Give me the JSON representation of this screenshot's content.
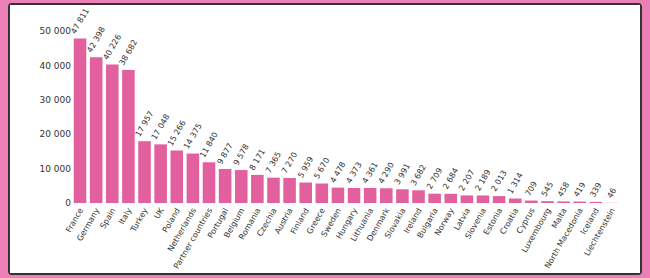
{
  "chart_data": {
    "type": "bar",
    "categories": [
      "France",
      "Germany",
      "Spain",
      "Italy",
      "Turkey",
      "UK",
      "Poland",
      "Netherlands",
      "Partner countries",
      "Portugal",
      "Belgium",
      "Romania",
      "Czechia",
      "Austria",
      "Finland",
      "Greece",
      "Sweden",
      "Hungary",
      "Lithuania",
      "Denmark",
      "Slovakia",
      "Ireland",
      "Bulgaria",
      "Norway",
      "Latvia",
      "Slovenia",
      "Estonia",
      "Croatia",
      "Cyprus",
      "Luxembourg",
      "Malta",
      "North Macedonia",
      "Iceland",
      "Liechtenstein"
    ],
    "values": [
      47811,
      42398,
      40226,
      38682,
      17957,
      17048,
      15266,
      14375,
      11840,
      9877,
      9578,
      8171,
      7365,
      7270,
      5959,
      5670,
      4478,
      4373,
      4361,
      4290,
      3991,
      3682,
      2709,
      2684,
      2207,
      2189,
      2013,
      1314,
      709,
      545,
      458,
      419,
      339,
      46
    ],
    "value_labels": [
      "47 811",
      "42 398",
      "40 226",
      "38 682",
      "17 957",
      "17 048",
      "15 266",
      "14 375",
      "11 840",
      "9 877",
      "9 578",
      "8 171",
      "7 365",
      "7 270",
      "5 959",
      "5 670",
      "4 478",
      "4 373",
      "4 361",
      "4 290",
      "3 991",
      "3 682",
      "2 709",
      "2 684",
      "2 207",
      "2 189",
      "2 013",
      "1 314",
      "709",
      "545",
      "458",
      "419",
      "339",
      "46"
    ],
    "data_labels": true,
    "color": "#e2609e",
    "ylim": [
      0,
      50000
    ],
    "yticks": [
      0,
      {
        "value": 10000,
        "label": "10 000"
      },
      {
        "value": 20000,
        "label": "20 000"
      },
      {
        "value": 30000,
        "label": "30 000"
      },
      {
        "value": 40000,
        "label": "40 000"
      },
      {
        "value": 50000,
        "label": "50 000"
      }
    ],
    "grid": false
  }
}
